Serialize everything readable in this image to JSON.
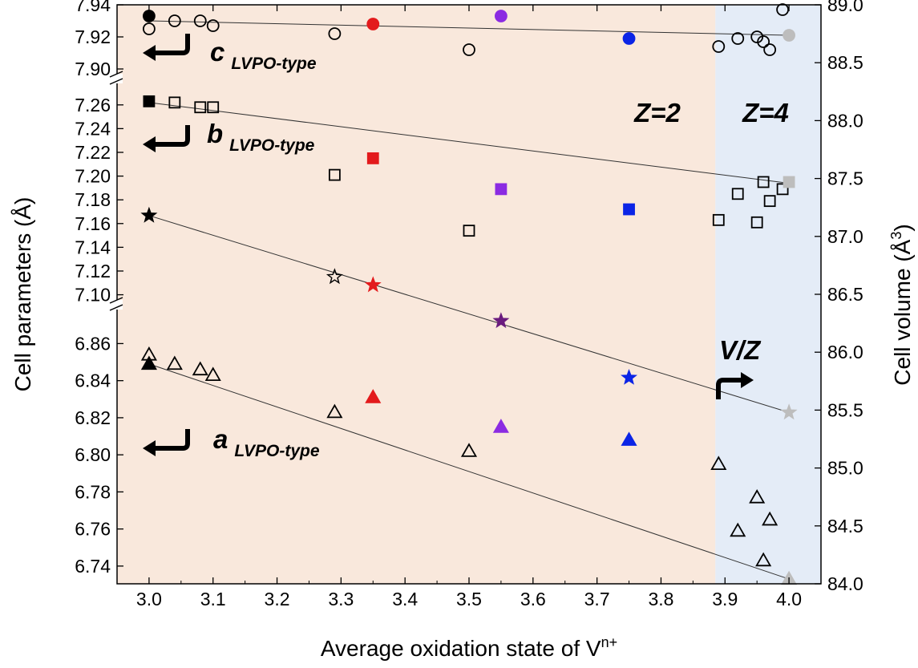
{
  "chart_data": {
    "type": "scatter",
    "xlabel": "Average oxidation state of V",
    "xlabel_sup": "n+",
    "ylabel_left": "Cell parameters (Å)",
    "ylabel_right": "Cell volume (Å",
    "ylabel_right_sup": "3",
    "ylabel_right_close": ")",
    "xlim": [
      2.95,
      4.05
    ],
    "x_ticks": [
      "3.0",
      "3.1",
      "3.2",
      "3.3",
      "3.4",
      "3.5",
      "3.6",
      "3.7",
      "3.8",
      "3.9",
      "4.0"
    ],
    "left_axis_segments": [
      {
        "name": "c",
        "ylim": [
          7.897,
          7.94
        ],
        "ticks": [
          "7.90",
          "7.92",
          "7.94"
        ]
      },
      {
        "name": "b",
        "ylim": [
          7.097,
          7.27
        ],
        "ticks": [
          "7.10",
          "7.12",
          "7.14",
          "7.16",
          "7.18",
          "7.20",
          "7.22",
          "7.24",
          "7.26"
        ]
      },
      {
        "name": "a",
        "ylim": [
          6.73,
          6.871
        ],
        "ticks": [
          "6.74",
          "6.76",
          "6.78",
          "6.80",
          "6.82",
          "6.84",
          "6.86"
        ]
      }
    ],
    "right_axis": {
      "ylim": [
        84.0,
        89.0
      ],
      "ticks": [
        "84.0",
        "84.5",
        "85.0",
        "85.5",
        "86.0",
        "86.5",
        "87.0",
        "87.5",
        "88.0",
        "88.5",
        "89.0"
      ]
    },
    "regions": [
      {
        "label": "Z=2",
        "x_range": [
          2.95,
          3.885
        ],
        "color": "#f9e8dc"
      },
      {
        "label": "Z=4",
        "x_range": [
          3.885,
          4.05
        ],
        "color": "#e4ecf7"
      }
    ],
    "annotations": [
      {
        "main": "c",
        "sub": "LVPO-type"
      },
      {
        "main": "b",
        "sub": "LVPO-type"
      },
      {
        "main": "a",
        "sub": "LVPO-type"
      },
      {
        "main": "V/Z",
        "sub": ""
      }
    ],
    "colors": {
      "black": "#000000",
      "red": "#e31a1c",
      "purple": "#8b2be2",
      "blue": "#0b24e6",
      "gray": "#bdbdbd",
      "dark_purple": "#6a1b7e"
    },
    "series": [
      {
        "param": "c",
        "marker": "circle",
        "axis": "c",
        "filled": [
          {
            "x": 3.0,
            "y": 7.933,
            "color": "#000000"
          },
          {
            "x": 3.35,
            "y": 7.928,
            "color": "#e31a1c"
          },
          {
            "x": 3.55,
            "y": 7.933,
            "color": "#8b2be2"
          },
          {
            "x": 3.75,
            "y": 7.919,
            "color": "#0b24e6"
          },
          {
            "x": 4.0,
            "y": 7.921,
            "color": "#bdbdbd"
          }
        ],
        "open": [
          {
            "x": 3.0,
            "y": 7.925
          },
          {
            "x": 3.04,
            "y": 7.93
          },
          {
            "x": 3.08,
            "y": 7.93
          },
          {
            "x": 3.1,
            "y": 7.927
          },
          {
            "x": 3.29,
            "y": 7.922
          },
          {
            "x": 3.5,
            "y": 7.912
          },
          {
            "x": 3.89,
            "y": 7.914
          },
          {
            "x": 3.92,
            "y": 7.919
          },
          {
            "x": 3.95,
            "y": 7.92
          },
          {
            "x": 3.96,
            "y": 7.917
          },
          {
            "x": 3.97,
            "y": 7.912
          },
          {
            "x": 3.99,
            "y": 7.937
          }
        ],
        "fit": [
          {
            "x": 3.0,
            "y": 7.93
          },
          {
            "x": 4.0,
            "y": 7.921
          }
        ]
      },
      {
        "param": "b",
        "marker": "square",
        "axis": "b",
        "filled": [
          {
            "x": 3.0,
            "y": 7.263,
            "color": "#000000"
          },
          {
            "x": 3.35,
            "y": 7.215,
            "color": "#e31a1c"
          },
          {
            "x": 3.55,
            "y": 7.189,
            "color": "#8b2be2"
          },
          {
            "x": 3.75,
            "y": 7.172,
            "color": "#0b24e6"
          },
          {
            "x": 4.0,
            "y": 7.195,
            "color": "#bdbdbd"
          }
        ],
        "open": [
          {
            "x": 3.04,
            "y": 7.262
          },
          {
            "x": 3.08,
            "y": 7.258
          },
          {
            "x": 3.1,
            "y": 7.258
          },
          {
            "x": 3.29,
            "y": 7.201
          },
          {
            "x": 3.5,
            "y": 7.154
          },
          {
            "x": 3.89,
            "y": 7.163
          },
          {
            "x": 3.92,
            "y": 7.185
          },
          {
            "x": 3.95,
            "y": 7.161
          },
          {
            "x": 3.96,
            "y": 7.195
          },
          {
            "x": 3.97,
            "y": 7.179
          },
          {
            "x": 3.99,
            "y": 7.189
          }
        ],
        "fit": [
          {
            "x": 3.0,
            "y": 7.262
          },
          {
            "x": 4.0,
            "y": 7.194
          }
        ]
      },
      {
        "param": "V/Z",
        "marker": "star",
        "axis": "right",
        "filled": [
          {
            "x": 3.0,
            "y": 87.18,
            "color": "#000000"
          },
          {
            "x": 3.35,
            "y": 86.58,
            "color": "#e31a1c"
          },
          {
            "x": 3.55,
            "y": 86.27,
            "color": "#6a1b7e"
          },
          {
            "x": 3.75,
            "y": 85.78,
            "color": "#0b24e6"
          },
          {
            "x": 4.0,
            "y": 85.48,
            "color": "#bdbdbd"
          }
        ],
        "open": [
          {
            "x": 3.29,
            "y": 86.65
          }
        ],
        "fit": [
          {
            "x": 3.0,
            "y": 87.18
          },
          {
            "x": 4.0,
            "y": 85.48
          }
        ]
      },
      {
        "param": "a",
        "marker": "triangle",
        "axis": "a",
        "filled": [
          {
            "x": 3.0,
            "y": 6.849,
            "color": "#000000"
          },
          {
            "x": 3.35,
            "y": 6.831,
            "color": "#e31a1c"
          },
          {
            "x": 3.55,
            "y": 6.815,
            "color": "#8b2be2"
          },
          {
            "x": 3.75,
            "y": 6.808,
            "color": "#0b24e6"
          },
          {
            "x": 4.0,
            "y": 6.733,
            "color": "#bdbdbd"
          }
        ],
        "open": [
          {
            "x": 3.0,
            "y": 6.854
          },
          {
            "x": 3.04,
            "y": 6.849
          },
          {
            "x": 3.08,
            "y": 6.846
          },
          {
            "x": 3.1,
            "y": 6.843
          },
          {
            "x": 3.29,
            "y": 6.823
          },
          {
            "x": 3.5,
            "y": 6.802
          },
          {
            "x": 3.89,
            "y": 6.795
          },
          {
            "x": 3.92,
            "y": 6.759
          },
          {
            "x": 3.95,
            "y": 6.777
          },
          {
            "x": 3.96,
            "y": 6.743
          },
          {
            "x": 3.97,
            "y": 6.765
          }
        ],
        "fit": [
          {
            "x": 3.0,
            "y": 6.849
          },
          {
            "x": 4.0,
            "y": 6.733
          }
        ]
      }
    ]
  }
}
